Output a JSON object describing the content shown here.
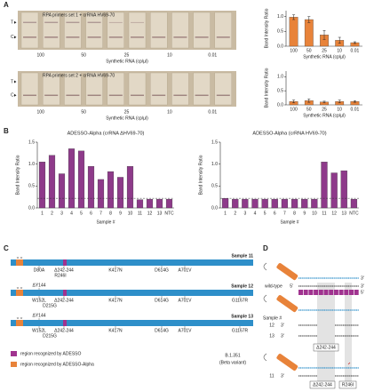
{
  "chart_data": [
    {
      "type": "bar",
      "x_label": "Synthetic RNA (cp/µl)",
      "y_label": "Band Intensity Ratio",
      "categories": [
        "100",
        "50",
        "25",
        "10",
        "0.01"
      ],
      "values": [
        0.98,
        0.9,
        0.38,
        0.2,
        0.12
      ],
      "errors": [
        0.08,
        0.1,
        0.15,
        0.1,
        0.03
      ],
      "color": "#e8833a",
      "ylim": [
        0,
        1.2
      ],
      "yticks": [
        {
          "value": 0,
          "label": "0.0"
        },
        {
          "value": 0.5,
          "label": "0.5"
        },
        {
          "value": 1,
          "label": "1.0"
        }
      ]
    },
    {
      "type": "bar",
      "x_label": "Synthetic RNA (cp/µl)",
      "y_label": "Band Intensity Ratio",
      "categories": [
        "100",
        "50",
        "25",
        "10",
        "0.01"
      ],
      "values": [
        0.12,
        0.15,
        0.1,
        0.12,
        0.12
      ],
      "errors": [
        0.05,
        0.06,
        0.03,
        0.05,
        0.03
      ],
      "color": "#e8833a",
      "ylim": [
        0,
        1.2
      ],
      "yticks": [
        {
          "value": 0,
          "label": "0.0"
        },
        {
          "value": 0.5,
          "label": "0.5"
        },
        {
          "value": 1,
          "label": "1.0"
        }
      ]
    },
    {
      "type": "bar",
      "title": "ADESSO-Alpha (crRNA ΔHV69-70)",
      "x_label": "Sample #",
      "y_label": "Band Intensity Ratio",
      "categories": [
        "1",
        "2",
        "3",
        "4",
        "5",
        "6",
        "7",
        "8",
        "9",
        "10",
        "11",
        "12",
        "13",
        "NTC"
      ],
      "values": [
        1.05,
        1.2,
        0.78,
        1.35,
        1.3,
        0.95,
        0.65,
        0.83,
        0.7,
        0.95,
        0.19,
        0.2,
        0.2,
        0.2
      ],
      "color": "#8e3a8a",
      "threshold": 0.22,
      "ylim": [
        0,
        1.5
      ],
      "yticks": [
        {
          "value": 0,
          "label": "0.0"
        },
        {
          "value": 0.5,
          "label": "0.5"
        },
        {
          "value": 1,
          "label": "1.0"
        },
        {
          "value": 1.5,
          "label": "1.5"
        }
      ]
    },
    {
      "type": "bar",
      "title": "ADESSO-Alpha (crRNA HV69-70)",
      "x_label": "Sample #",
      "y_label": "Band Intensity Ratio",
      "categories": [
        "1",
        "2",
        "3",
        "4",
        "5",
        "6",
        "7",
        "8",
        "9",
        "10",
        "11",
        "12",
        "13",
        "NTC"
      ],
      "values": [
        0.22,
        0.2,
        0.2,
        0.2,
        0.2,
        0.2,
        0.2,
        0.2,
        0.2,
        0.2,
        1.05,
        0.8,
        0.85,
        0.2
      ],
      "color": "#8e3a8a",
      "threshold": 0.22,
      "ylim": [
        0,
        1.5
      ],
      "yticks": [
        {
          "value": 0,
          "label": "0.0"
        },
        {
          "value": 0.5,
          "label": "0.5"
        },
        {
          "value": 1,
          "label": "1.0"
        },
        {
          "value": 1.5,
          "label": "1.5"
        }
      ]
    }
  ],
  "panel_a": {
    "label": "A",
    "strip_sets": [
      "RPA primers set 1 + crRNA HV69-70",
      "RPA primers set 2 + crRNA HV69-70"
    ],
    "line_labels": [
      "T",
      "C"
    ],
    "concentrations": [
      "100",
      "50",
      "25",
      "10",
      "0.01"
    ],
    "x_label": "Synthetic RNA (cp/µl)"
  },
  "panel_b": {
    "label": "B"
  },
  "panel_c": {
    "label": "C",
    "samples": [
      {
        "name": "Sample 11",
        "above": [],
        "below": [
          "D80A",
          "Δ242-244",
          "K417N",
          "D614G",
          "A701V"
        ],
        "below2": [
          "R246I"
        ]
      },
      {
        "name": "Sample 12",
        "above": [
          "ΔY144"
        ],
        "below": [
          "W152L",
          "Δ242-244",
          "K417N",
          "D614G",
          "A701V",
          "G1167R"
        ],
        "below2": [
          "D215G"
        ]
      },
      {
        "name": "Sample 13",
        "above": [
          "ΔY144"
        ],
        "below": [
          "W152L",
          "Δ242-244",
          "K417N",
          "D614G",
          "A701V",
          "G1167R"
        ],
        "below2": [
          "D215G"
        ]
      }
    ],
    "legend": [
      "region recognized by ADESSO",
      "region recognized by ADESSO-Alpha"
    ],
    "lineage": "B.1.351",
    "lineage_note": "(Beta variant)"
  },
  "panel_d": {
    "label": "D",
    "wild_type": "wild-type",
    "sample_header": "Sample #",
    "samples": [
      "12",
      "13",
      "11"
    ],
    "deletion": "Δ242-244",
    "mutation": "R246I",
    "end5": "5'",
    "end3": "3'"
  }
}
